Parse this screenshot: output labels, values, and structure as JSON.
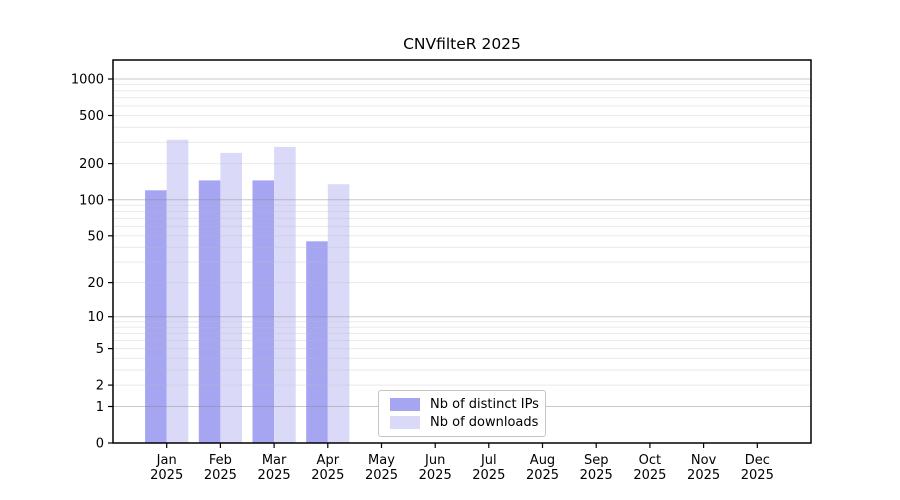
{
  "figure": {
    "background": "#ffffff",
    "text_color": "#000000",
    "axis_color": "#000000"
  },
  "chart_data": {
    "type": "bar",
    "title": "CNVfilteR 2025",
    "xlabel": "",
    "ylabel": "",
    "year": "2025",
    "months": [
      "Jan",
      "Feb",
      "Mar",
      "Apr",
      "May",
      "Jun",
      "Jul",
      "Aug",
      "Sep",
      "Oct",
      "Nov",
      "Dec"
    ],
    "categories": [
      "Jan 2025",
      "Feb 2025",
      "Mar 2025",
      "Apr 2025",
      "May 2025",
      "Jun 2025",
      "Jul 2025",
      "Aug 2025",
      "Sep 2025",
      "Oct 2025",
      "Nov 2025",
      "Dec 2025"
    ],
    "series": [
      {
        "name": "Nb of distinct IPs",
        "key": "distinct-ips",
        "color": "#a5a5f2",
        "values": [
          120,
          145,
          145,
          45,
          null,
          null,
          null,
          null,
          null,
          null,
          null,
          null
        ]
      },
      {
        "name": "Nb of downloads",
        "key": "downloads",
        "color": "#dadaf8",
        "values": [
          315,
          245,
          275,
          135,
          null,
          null,
          null,
          null,
          null,
          null,
          null,
          null
        ]
      }
    ],
    "y_axis": {
      "scale": "log10(value+1)",
      "tick_values": [
        0,
        1,
        2,
        5,
        10,
        20,
        50,
        100,
        200,
        500,
        1000
      ],
      "top_value": 1430
    },
    "grid": {
      "on": true,
      "major_values": [
        1,
        10,
        100,
        1000
      ],
      "minor_multipliers": [
        2,
        3,
        4,
        5,
        6,
        7,
        8,
        9
      ],
      "major_color": "#c9c9c9",
      "minor_color": "#eaeaea"
    },
    "legend": {
      "position": "inside-bottom-center",
      "border_color": "#c4c4c4",
      "background": "#ffffff"
    }
  }
}
